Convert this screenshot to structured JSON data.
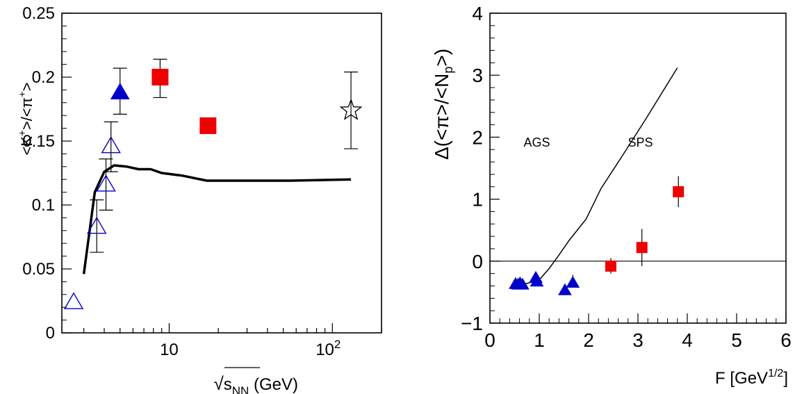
{
  "chart_data": [
    {
      "type": "scatter",
      "title": "",
      "ylabel": "<K+>/<π+>",
      "xlabel": "√sNN (GeV)",
      "xscale": "log",
      "xlim": [
        2.2,
        200
      ],
      "ylim": [
        0,
        0.25
      ],
      "grid": false,
      "x_tick_labels": [
        {
          "value": 10,
          "label": "10"
        },
        {
          "value": 100,
          "label": "10",
          "exp": "2"
        }
      ],
      "y_tick_labels": [
        "0",
        "0.05",
        "0.1",
        "0.15",
        "0.2",
        "0.25"
      ],
      "y_ticks": [
        0,
        0.05,
        0.1,
        0.15,
        0.2,
        0.25
      ],
      "series": [
        {
          "marker": "open-triangle",
          "color": "#0000cc",
          "points": [
            {
              "x": 2.6,
              "y": 0.024
            },
            {
              "x": 3.6,
              "y": 0.083,
              "err_hi": 0.104,
              "err_lo": 0.063
            },
            {
              "x": 4.1,
              "y": 0.116,
              "err_hi": 0.136,
              "err_lo": 0.096
            },
            {
              "x": 4.4,
              "y": 0.146,
              "err_hi": 0.165,
              "err_lo": 0.126
            }
          ]
        },
        {
          "marker": "filled-triangle",
          "color": "#0000cc",
          "points": [
            {
              "x": 5.0,
              "y": 0.188,
              "err_hi": 0.207,
              "err_lo": 0.171
            }
          ]
        },
        {
          "marker": "filled-square",
          "color": "#ee0000",
          "points": [
            {
              "x": 8.8,
              "y": 0.2,
              "err_hi": 0.214,
              "err_lo": 0.184
            },
            {
              "x": 17.3,
              "y": 0.162
            }
          ]
        },
        {
          "marker": "open-star",
          "color": "#000000",
          "points": [
            {
              "x": 130,
              "y": 0.174,
              "err_hi": 0.204,
              "err_lo": 0.144
            }
          ]
        }
      ],
      "curves": [
        {
          "style": "thick-line",
          "color": "#000000",
          "x": [
            3.0,
            3.5,
            4.0,
            4.6,
            5.5,
            6.5,
            7.7,
            9.0,
            12.0,
            17.0,
            30,
            55,
            130
          ],
          "y": [
            0.046,
            0.11,
            0.126,
            0.131,
            0.13,
            0.128,
            0.128,
            0.125,
            0.123,
            0.119,
            0.119,
            0.119,
            0.12
          ]
        }
      ]
    },
    {
      "type": "scatter",
      "title": "",
      "ylabel": "Δ(<π>/<Np>)",
      "xlabel": "F [GeV1/2]",
      "xlim": [
        0,
        6
      ],
      "ylim": [
        -1,
        4
      ],
      "grid": false,
      "x_tick_labels": [
        "0",
        "1",
        "2",
        "3",
        "4",
        "5",
        "6"
      ],
      "x_ticks": [
        0,
        1,
        2,
        3,
        4,
        5,
        6
      ],
      "y_tick_labels": [
        "−1",
        "0",
        "1",
        "2",
        "3",
        "4"
      ],
      "y_ticks": [
        -1,
        0,
        1,
        2,
        3,
        4
      ],
      "zero_line": 0,
      "annotations": [
        {
          "text": "AGS",
          "x": 0.95,
          "y": 1.85
        },
        {
          "text": "SPS",
          "x": 3.05,
          "y": 1.85
        }
      ],
      "series": [
        {
          "marker": "filled-triangle",
          "color": "#0000cc",
          "points": [
            {
              "x": 0.52,
              "y": -0.37
            },
            {
              "x": 0.57,
              "y": -0.38
            },
            {
              "x": 0.61,
              "y": -0.36
            },
            {
              "x": 0.66,
              "y": -0.38
            },
            {
              "x": 0.93,
              "y": -0.27
            },
            {
              "x": 0.95,
              "y": -0.33
            },
            {
              "x": 1.52,
              "y": -0.47
            },
            {
              "x": 1.68,
              "y": -0.35,
              "err_hi": -0.22,
              "err_lo": -0.4
            }
          ]
        },
        {
          "marker": "filled-square",
          "color": "#ee0000",
          "points": [
            {
              "x": 2.45,
              "y": -0.08,
              "err_hi": 0.05,
              "err_lo": -0.2
            },
            {
              "x": 3.08,
              "y": 0.22,
              "err_hi": 0.52,
              "err_lo": -0.08
            },
            {
              "x": 3.82,
              "y": 1.12,
              "err_hi": 1.37,
              "err_lo": 0.87
            }
          ]
        }
      ],
      "curves": [
        {
          "style": "thin-line",
          "color": "#000000",
          "x": [
            0.55,
            0.75,
            1.0,
            1.2,
            1.4,
            1.6,
            1.95,
            2.25,
            2.7,
            3.15,
            3.8
          ],
          "y": [
            -0.4,
            -0.36,
            -0.3,
            -0.12,
            0.1,
            0.33,
            0.68,
            1.17,
            1.72,
            2.28,
            3.12
          ]
        }
      ]
    }
  ]
}
